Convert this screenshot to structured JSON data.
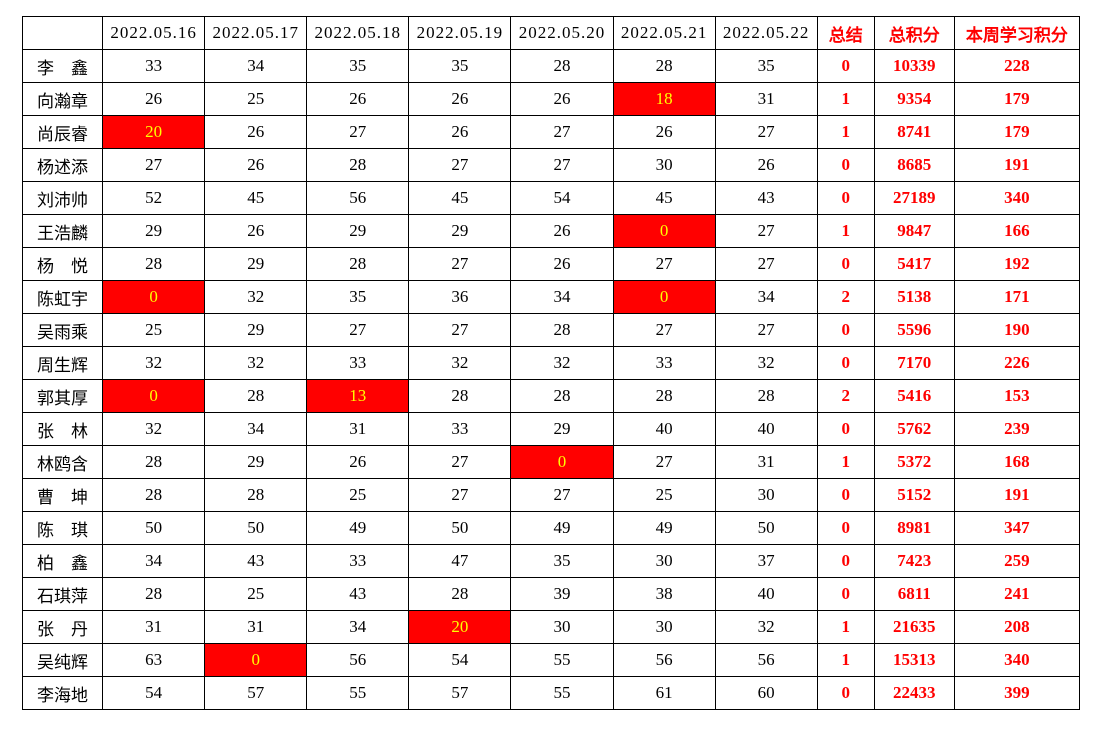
{
  "table": {
    "columns": [
      "",
      "2022.05.16",
      "2022.05.17",
      "2022.05.18",
      "2022.05.19",
      "2022.05.20",
      "2022.05.21",
      "2022.05.22",
      "总结",
      "总积分",
      "本周学习积分"
    ],
    "rows": [
      {
        "name": "李　鑫",
        "daily": [
          "33",
          "34",
          "35",
          "35",
          "28",
          "28",
          "35"
        ],
        "highlights": [],
        "summary": "0",
        "total": "10339",
        "week_score": "228"
      },
      {
        "name": "向瀚章",
        "daily": [
          "26",
          "25",
          "26",
          "26",
          "26",
          "18",
          "31"
        ],
        "highlights": [
          5
        ],
        "summary": "1",
        "total": "9354",
        "week_score": "179"
      },
      {
        "name": "尚辰睿",
        "daily": [
          "20",
          "26",
          "27",
          "26",
          "27",
          "26",
          "27"
        ],
        "highlights": [
          0
        ],
        "summary": "1",
        "total": "8741",
        "week_score": "179"
      },
      {
        "name": "杨述添",
        "daily": [
          "27",
          "26",
          "28",
          "27",
          "27",
          "30",
          "26"
        ],
        "highlights": [],
        "summary": "0",
        "total": "8685",
        "week_score": "191"
      },
      {
        "name": "刘沛帅",
        "daily": [
          "52",
          "45",
          "56",
          "45",
          "54",
          "45",
          "43"
        ],
        "highlights": [],
        "summary": "0",
        "total": "27189",
        "week_score": "340"
      },
      {
        "name": "王浩麟",
        "daily": [
          "29",
          "26",
          "29",
          "29",
          "26",
          "0",
          "27"
        ],
        "highlights": [
          5
        ],
        "summary": "1",
        "total": "9847",
        "week_score": "166"
      },
      {
        "name": "杨　悦",
        "daily": [
          "28",
          "29",
          "28",
          "27",
          "26",
          "27",
          "27"
        ],
        "highlights": [],
        "summary": "0",
        "total": "5417",
        "week_score": "192"
      },
      {
        "name": "陈虹宇",
        "daily": [
          "0",
          "32",
          "35",
          "36",
          "34",
          "0",
          "34"
        ],
        "highlights": [
          0,
          5
        ],
        "summary": "2",
        "total": "5138",
        "week_score": "171"
      },
      {
        "name": "吴雨乘",
        "daily": [
          "25",
          "29",
          "27",
          "27",
          "28",
          "27",
          "27"
        ],
        "highlights": [],
        "summary": "0",
        "total": "5596",
        "week_score": "190"
      },
      {
        "name": "周生辉",
        "daily": [
          "32",
          "32",
          "33",
          "32",
          "32",
          "33",
          "32"
        ],
        "highlights": [],
        "summary": "0",
        "total": "7170",
        "week_score": "226"
      },
      {
        "name": "郭其厚",
        "daily": [
          "0",
          "28",
          "13",
          "28",
          "28",
          "28",
          "28"
        ],
        "highlights": [
          0,
          2
        ],
        "summary": "2",
        "total": "5416",
        "week_score": "153"
      },
      {
        "name": "张　林",
        "daily": [
          "32",
          "34",
          "31",
          "33",
          "29",
          "40",
          "40"
        ],
        "highlights": [],
        "summary": "0",
        "total": "5762",
        "week_score": "239"
      },
      {
        "name": "林鸥含",
        "daily": [
          "28",
          "29",
          "26",
          "27",
          "0",
          "27",
          "31"
        ],
        "highlights": [
          4
        ],
        "summary": "1",
        "total": "5372",
        "week_score": "168"
      },
      {
        "name": "曹　坤",
        "daily": [
          "28",
          "28",
          "25",
          "27",
          "27",
          "25",
          "30"
        ],
        "highlights": [],
        "summary": "0",
        "total": "5152",
        "week_score": "191"
      },
      {
        "name": "陈　琪",
        "daily": [
          "50",
          "50",
          "49",
          "50",
          "49",
          "49",
          "50"
        ],
        "highlights": [],
        "summary": "0",
        "total": "8981",
        "week_score": "347"
      },
      {
        "name": "柏　鑫",
        "daily": [
          "34",
          "43",
          "33",
          "47",
          "35",
          "30",
          "37"
        ],
        "highlights": [],
        "summary": "0",
        "total": "7423",
        "week_score": "259"
      },
      {
        "name": "石琪萍",
        "daily": [
          "28",
          "25",
          "43",
          "28",
          "39",
          "38",
          "40"
        ],
        "highlights": [],
        "summary": "0",
        "total": "6811",
        "week_score": "241"
      },
      {
        "name": "张　丹",
        "daily": [
          "31",
          "31",
          "34",
          "20",
          "30",
          "30",
          "32"
        ],
        "highlights": [
          3
        ],
        "summary": "1",
        "total": "21635",
        "week_score": "208"
      },
      {
        "name": "吴纯辉",
        "daily": [
          "63",
          "0",
          "56",
          "54",
          "55",
          "56",
          "56"
        ],
        "highlights": [
          1
        ],
        "summary": "1",
        "total": "15313",
        "week_score": "340"
      },
      {
        "name": "李海地",
        "daily": [
          "54",
          "57",
          "55",
          "57",
          "55",
          "61",
          "60"
        ],
        "highlights": [],
        "summary": "0",
        "total": "22433",
        "week_score": "399"
      }
    ]
  },
  "colors": {
    "highlight_background": "#ff0000",
    "highlight_text": "#ffff00",
    "accent_text": "#ff0000",
    "body_text": "#000000",
    "border": "#000000",
    "page_background": "#ffffff"
  }
}
